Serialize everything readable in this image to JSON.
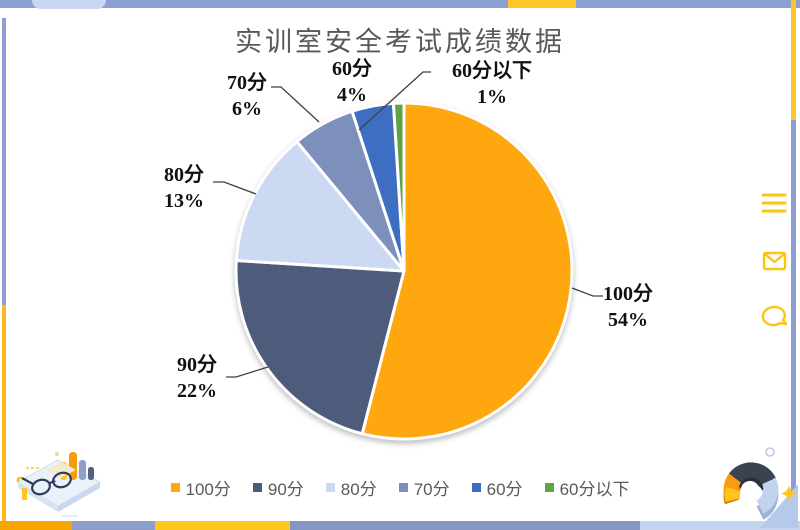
{
  "page": {
    "title": "实训室安全考试成绩数据"
  },
  "chart_data": {
    "type": "pie",
    "title": "实训室安全考试成绩数据",
    "start_angle_deg": -90,
    "direction": "clockwise",
    "legend_position": "bottom",
    "slices": [
      {
        "label": "100分",
        "value": 54,
        "pct_label": "54%",
        "color": "#FFA70E"
      },
      {
        "label": "90分",
        "value": 22,
        "pct_label": "22%",
        "color": "#4E5C7B"
      },
      {
        "label": "80分",
        "value": 13,
        "pct_label": "13%",
        "color": "#CBD9F2"
      },
      {
        "label": "70分",
        "value": 6,
        "pct_label": "6%",
        "color": "#7D90BC"
      },
      {
        "label": "60分",
        "value": 4,
        "pct_label": "4%",
        "color": "#3D6EC1"
      },
      {
        "label": "60分以下",
        "value": 1,
        "pct_label": "1%",
        "color": "#5FA346"
      }
    ]
  },
  "side_icons": [
    {
      "name": "menu-icon"
    },
    {
      "name": "mail-icon"
    },
    {
      "name": "chat-icon"
    }
  ],
  "theme": {
    "frame_blue": "#8B9FD1",
    "frame_yellow": "#FFC629",
    "frame_light_blue": "#C9D7F2",
    "icon_yellow": "#FFC40C",
    "text_gray": "#595959",
    "label_black": "#111111"
  }
}
